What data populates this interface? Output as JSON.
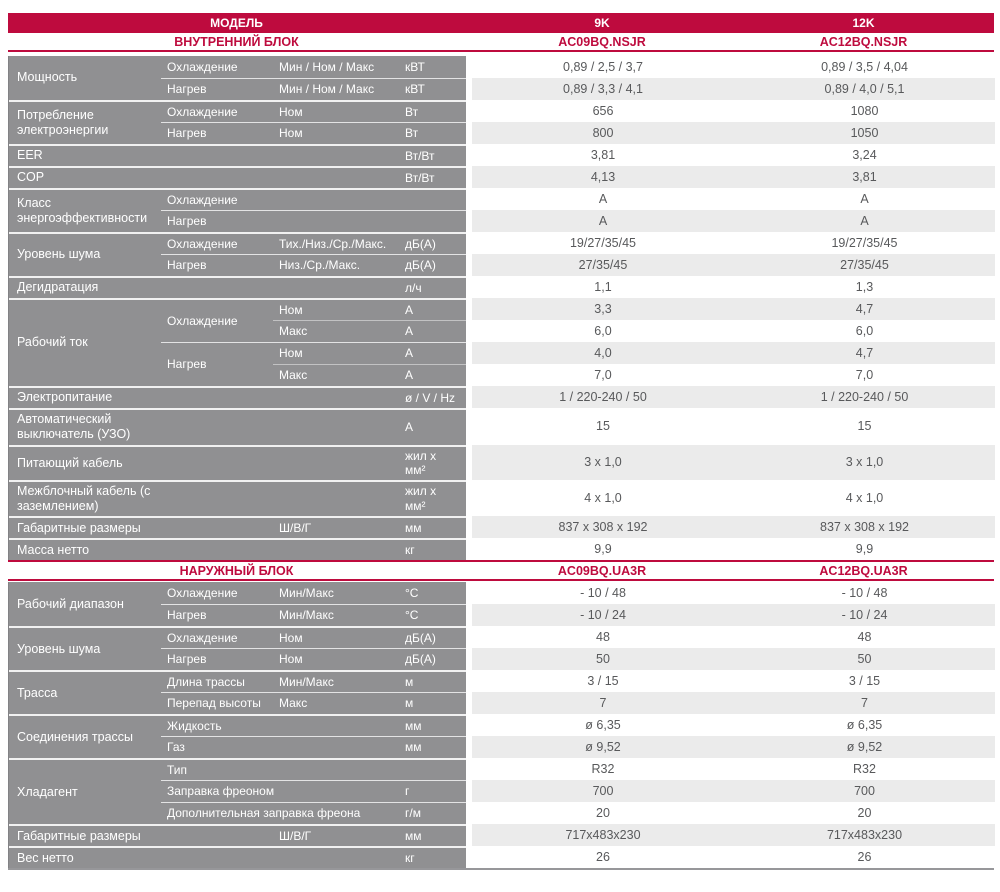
{
  "header": {
    "model_label": "МОДЕЛЬ",
    "columns": [
      "9K",
      "12K"
    ]
  },
  "colors": {
    "brand_red": "#be0b3e",
    "label_gray": "#909092",
    "stripe_gray": "#ebebeb",
    "value_text": "#58595b"
  },
  "sections": [
    {
      "title": "ВНУТРЕННИЙ БЛОК",
      "models": [
        "AC09BQ.NSJR",
        "AC12BQ.NSJR"
      ],
      "groups": [
        {
          "label": "Мощность",
          "subs": [
            {
              "label": "Охлаждение",
              "rows": [
                {
                  "param": "Мин / Ном / Макс",
                  "unit": "кВТ",
                  "values": [
                    "0,89 / 2,5 / 3,7",
                    "0,89 / 3,5 / 4,04"
                  ]
                }
              ]
            },
            {
              "label": "Нагрев",
              "rows": [
                {
                  "param": "Мин / Ном / Макс",
                  "unit": "кВТ",
                  "values": [
                    "0,89 / 3,3 / 4,1",
                    "0,89 / 4,0 / 5,1"
                  ]
                }
              ]
            }
          ]
        },
        {
          "label": "Потребление электроэнергии",
          "subs": [
            {
              "label": "Охлаждение",
              "rows": [
                {
                  "param": "Ном",
                  "unit": "Вт",
                  "values": [
                    "656",
                    "1080"
                  ]
                }
              ]
            },
            {
              "label": "Нагрев",
              "rows": [
                {
                  "param": "Ном",
                  "unit": "Вт",
                  "values": [
                    "800",
                    "1050"
                  ]
                }
              ]
            }
          ]
        },
        {
          "label": "EER",
          "subs": [
            {
              "label": "",
              "rows": [
                {
                  "param": "",
                  "unit": "Вт/Вт",
                  "values": [
                    "3,81",
                    "3,24"
                  ]
                }
              ]
            }
          ]
        },
        {
          "label": "COP",
          "subs": [
            {
              "label": "",
              "rows": [
                {
                  "param": "",
                  "unit": "Вт/Вт",
                  "values": [
                    "4,13",
                    "3,81"
                  ]
                }
              ]
            }
          ]
        },
        {
          "label": "Класс энергоэффективности",
          "subs": [
            {
              "label": "Охлаждение",
              "rows": [
                {
                  "param": "",
                  "unit": "",
                  "values": [
                    "A",
                    "A"
                  ]
                }
              ]
            },
            {
              "label": "Нагрев",
              "rows": [
                {
                  "param": "",
                  "unit": "",
                  "values": [
                    "A",
                    "A"
                  ]
                }
              ]
            }
          ]
        },
        {
          "label": "Уровень шума",
          "subs": [
            {
              "label": "Охлаждение",
              "rows": [
                {
                  "param": "Тих./Низ./Ср./Макс.",
                  "unit": "дБ(А)",
                  "values": [
                    "19/27/35/45",
                    "19/27/35/45"
                  ]
                }
              ]
            },
            {
              "label": "Нагрев",
              "rows": [
                {
                  "param": "Низ./Ср./Макс.",
                  "unit": "дБ(А)",
                  "values": [
                    "27/35/45",
                    "27/35/45"
                  ]
                }
              ]
            }
          ]
        },
        {
          "label": "Дегидратация",
          "subs": [
            {
              "label": "",
              "rows": [
                {
                  "param": "",
                  "unit": "л/ч",
                  "values": [
                    "1,1",
                    "1,3"
                  ]
                }
              ]
            }
          ]
        },
        {
          "label": "Рабочий ток",
          "subs": [
            {
              "label": "Охлаждение",
              "rows": [
                {
                  "param": "Ном",
                  "unit": "А",
                  "values": [
                    "3,3",
                    "4,7"
                  ]
                },
                {
                  "param": "Макс",
                  "unit": "А",
                  "values": [
                    "6,0",
                    "6,0"
                  ]
                }
              ]
            },
            {
              "label": "Нагрев",
              "rows": [
                {
                  "param": "Ном",
                  "unit": "А",
                  "values": [
                    "4,0",
                    "4,7"
                  ]
                },
                {
                  "param": "Макс",
                  "unit": "А",
                  "values": [
                    "7,0",
                    "7,0"
                  ]
                }
              ]
            }
          ]
        },
        {
          "label": "Электропитание",
          "subs": [
            {
              "label": "",
              "rows": [
                {
                  "param": "",
                  "unit": "ø / V / Hz",
                  "values": [
                    "1 / 220-240 / 50",
                    "1 / 220-240 / 50"
                  ]
                }
              ]
            }
          ]
        },
        {
          "label": "Автоматический выключатель (УЗО)",
          "subs": [
            {
              "label": "",
              "rows": [
                {
                  "param": "",
                  "unit": "А",
                  "values": [
                    "15",
                    "15"
                  ]
                }
              ]
            }
          ]
        },
        {
          "label": "Питающий кабель",
          "subs": [
            {
              "label": "",
              "rows": [
                {
                  "param": "",
                  "unit": "жил х\nмм²",
                  "values": [
                    "3 х 1,0",
                    "3 х 1,0"
                  ]
                }
              ]
            }
          ]
        },
        {
          "label": "Межблочный кабель (с заземлением)",
          "subs": [
            {
              "label": "",
              "rows": [
                {
                  "param": "",
                  "unit": "жил х\nмм²",
                  "values": [
                    "4 х 1,0",
                    "4 х 1,0"
                  ]
                }
              ]
            }
          ]
        },
        {
          "label": "Габаритные размеры",
          "subs": [
            {
              "label": "",
              "rows": [
                {
                  "param": "Ш/В/Г",
                  "unit": "мм",
                  "values": [
                    "837 х 308 х 192",
                    "837 х 308 х 192"
                  ]
                }
              ]
            }
          ]
        },
        {
          "label": "Масса нетто",
          "subs": [
            {
              "label": "",
              "rows": [
                {
                  "param": "",
                  "unit": "кг",
                  "values": [
                    "9,9",
                    "9,9"
                  ]
                }
              ]
            }
          ]
        }
      ]
    },
    {
      "title": "НАРУЖНЫЙ БЛОК",
      "models": [
        "AC09BQ.UA3R",
        "AC12BQ.UA3R"
      ],
      "groups": [
        {
          "label": "Рабочий диапазон",
          "subs": [
            {
              "label": "Охлаждение",
              "rows": [
                {
                  "param": "Мин/Макс",
                  "unit": "°С",
                  "values": [
                    "- 10 / 48",
                    "- 10 / 48"
                  ]
                }
              ]
            },
            {
              "label": "Нагрев",
              "rows": [
                {
                  "param": "Мин/Макс",
                  "unit": "°С",
                  "values": [
                    "- 10 / 24",
                    "- 10 / 24"
                  ]
                }
              ]
            }
          ]
        },
        {
          "label": "Уровень шума",
          "subs": [
            {
              "label": "Охлаждение",
              "rows": [
                {
                  "param": "Ном",
                  "unit": "дБ(А)",
                  "values": [
                    "48",
                    "48"
                  ]
                }
              ]
            },
            {
              "label": "Нагрев",
              "rows": [
                {
                  "param": "Ном",
                  "unit": "дБ(А)",
                  "values": [
                    "50",
                    "50"
                  ]
                }
              ]
            }
          ]
        },
        {
          "label": "Трасса",
          "subs": [
            {
              "label": "Длина трассы",
              "rows": [
                {
                  "param": "Мин/Макс",
                  "unit": "м",
                  "values": [
                    "3 / 15",
                    "3 / 15"
                  ]
                }
              ]
            },
            {
              "label": "Перепад высоты",
              "rows": [
                {
                  "param": "Макс",
                  "unit": "м",
                  "values": [
                    "7",
                    "7"
                  ]
                }
              ]
            }
          ]
        },
        {
          "label": "Соединения трассы",
          "subs": [
            {
              "label": "Жидкость",
              "rows": [
                {
                  "param": "",
                  "unit": "мм",
                  "values": [
                    "ø 6,35",
                    "ø 6,35"
                  ]
                }
              ]
            },
            {
              "label": "Газ",
              "rows": [
                {
                  "param": "",
                  "unit": "мм",
                  "values": [
                    "ø 9,52",
                    "ø 9,52"
                  ]
                }
              ]
            }
          ]
        },
        {
          "label": "Хладагент",
          "subs": [
            {
              "label": "Тип",
              "rows": [
                {
                  "param": "",
                  "unit": "",
                  "values": [
                    "R32",
                    "R32"
                  ]
                }
              ]
            },
            {
              "label": "Заправка фреоном",
              "rows": [
                {
                  "param": "",
                  "unit": "г",
                  "values": [
                    "700",
                    "700"
                  ]
                }
              ]
            },
            {
              "label": "Дополнительная заправка фреона",
              "rows": [
                {
                  "param": "",
                  "unit": "г/м",
                  "values": [
                    "20",
                    "20"
                  ]
                }
              ]
            }
          ]
        },
        {
          "label": "Габаритные размеры",
          "subs": [
            {
              "label": "",
              "rows": [
                {
                  "param": "Ш/В/Г",
                  "unit": "мм",
                  "values": [
                    "717х483х230",
                    "717х483х230"
                  ]
                }
              ]
            }
          ]
        },
        {
          "label": "Вес нетто",
          "subs": [
            {
              "label": "",
              "rows": [
                {
                  "param": "",
                  "unit": "кг",
                  "values": [
                    "26",
                    "26"
                  ]
                }
              ]
            }
          ]
        }
      ]
    }
  ]
}
